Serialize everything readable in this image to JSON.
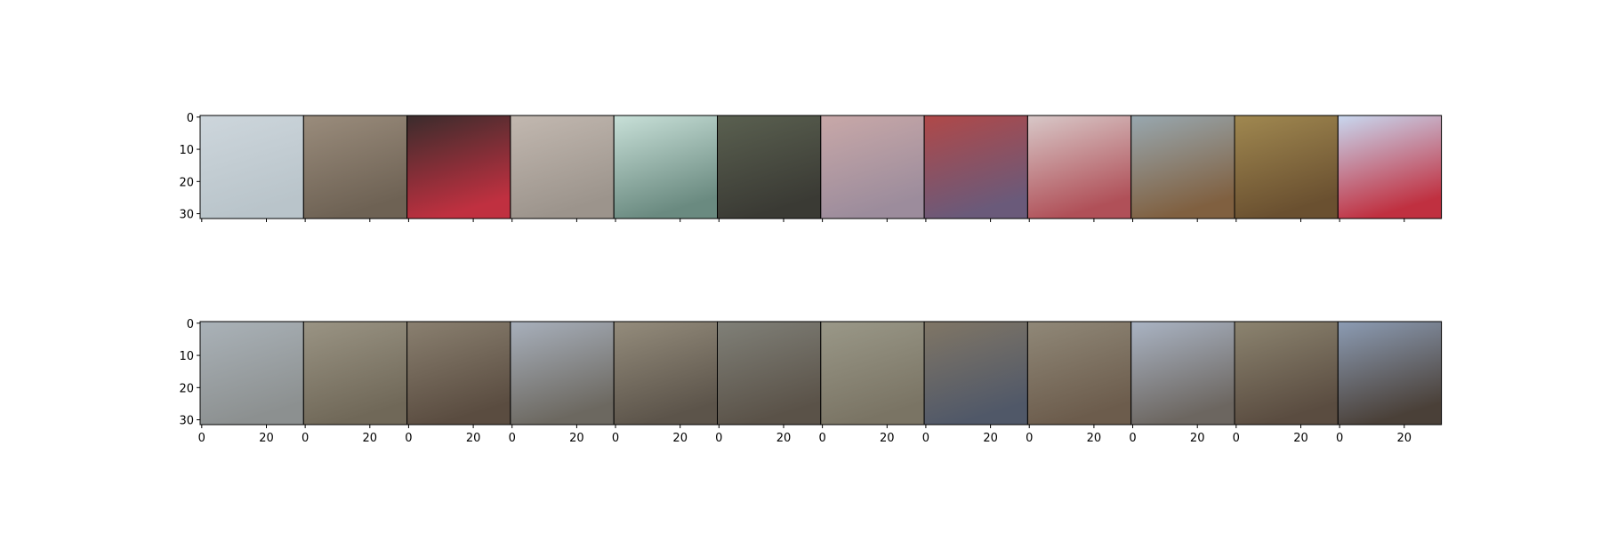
{
  "chart_data": [
    {
      "type": "image_row",
      "xlim": [
        -0.5,
        31.5
      ],
      "ylim": [
        31.5,
        -0.5
      ],
      "xticks": [
        0,
        20
      ],
      "yticks": [
        0,
        10,
        20,
        30
      ],
      "xtick_labels": false
    },
    {
      "type": "image_row",
      "xlim": [
        -0.5,
        31.5
      ],
      "ylim": [
        31.5,
        -0.5
      ],
      "xticks": [
        0,
        20
      ],
      "yticks": [
        0,
        10,
        20,
        30
      ],
      "xtick_labels": true
    }
  ]
}
